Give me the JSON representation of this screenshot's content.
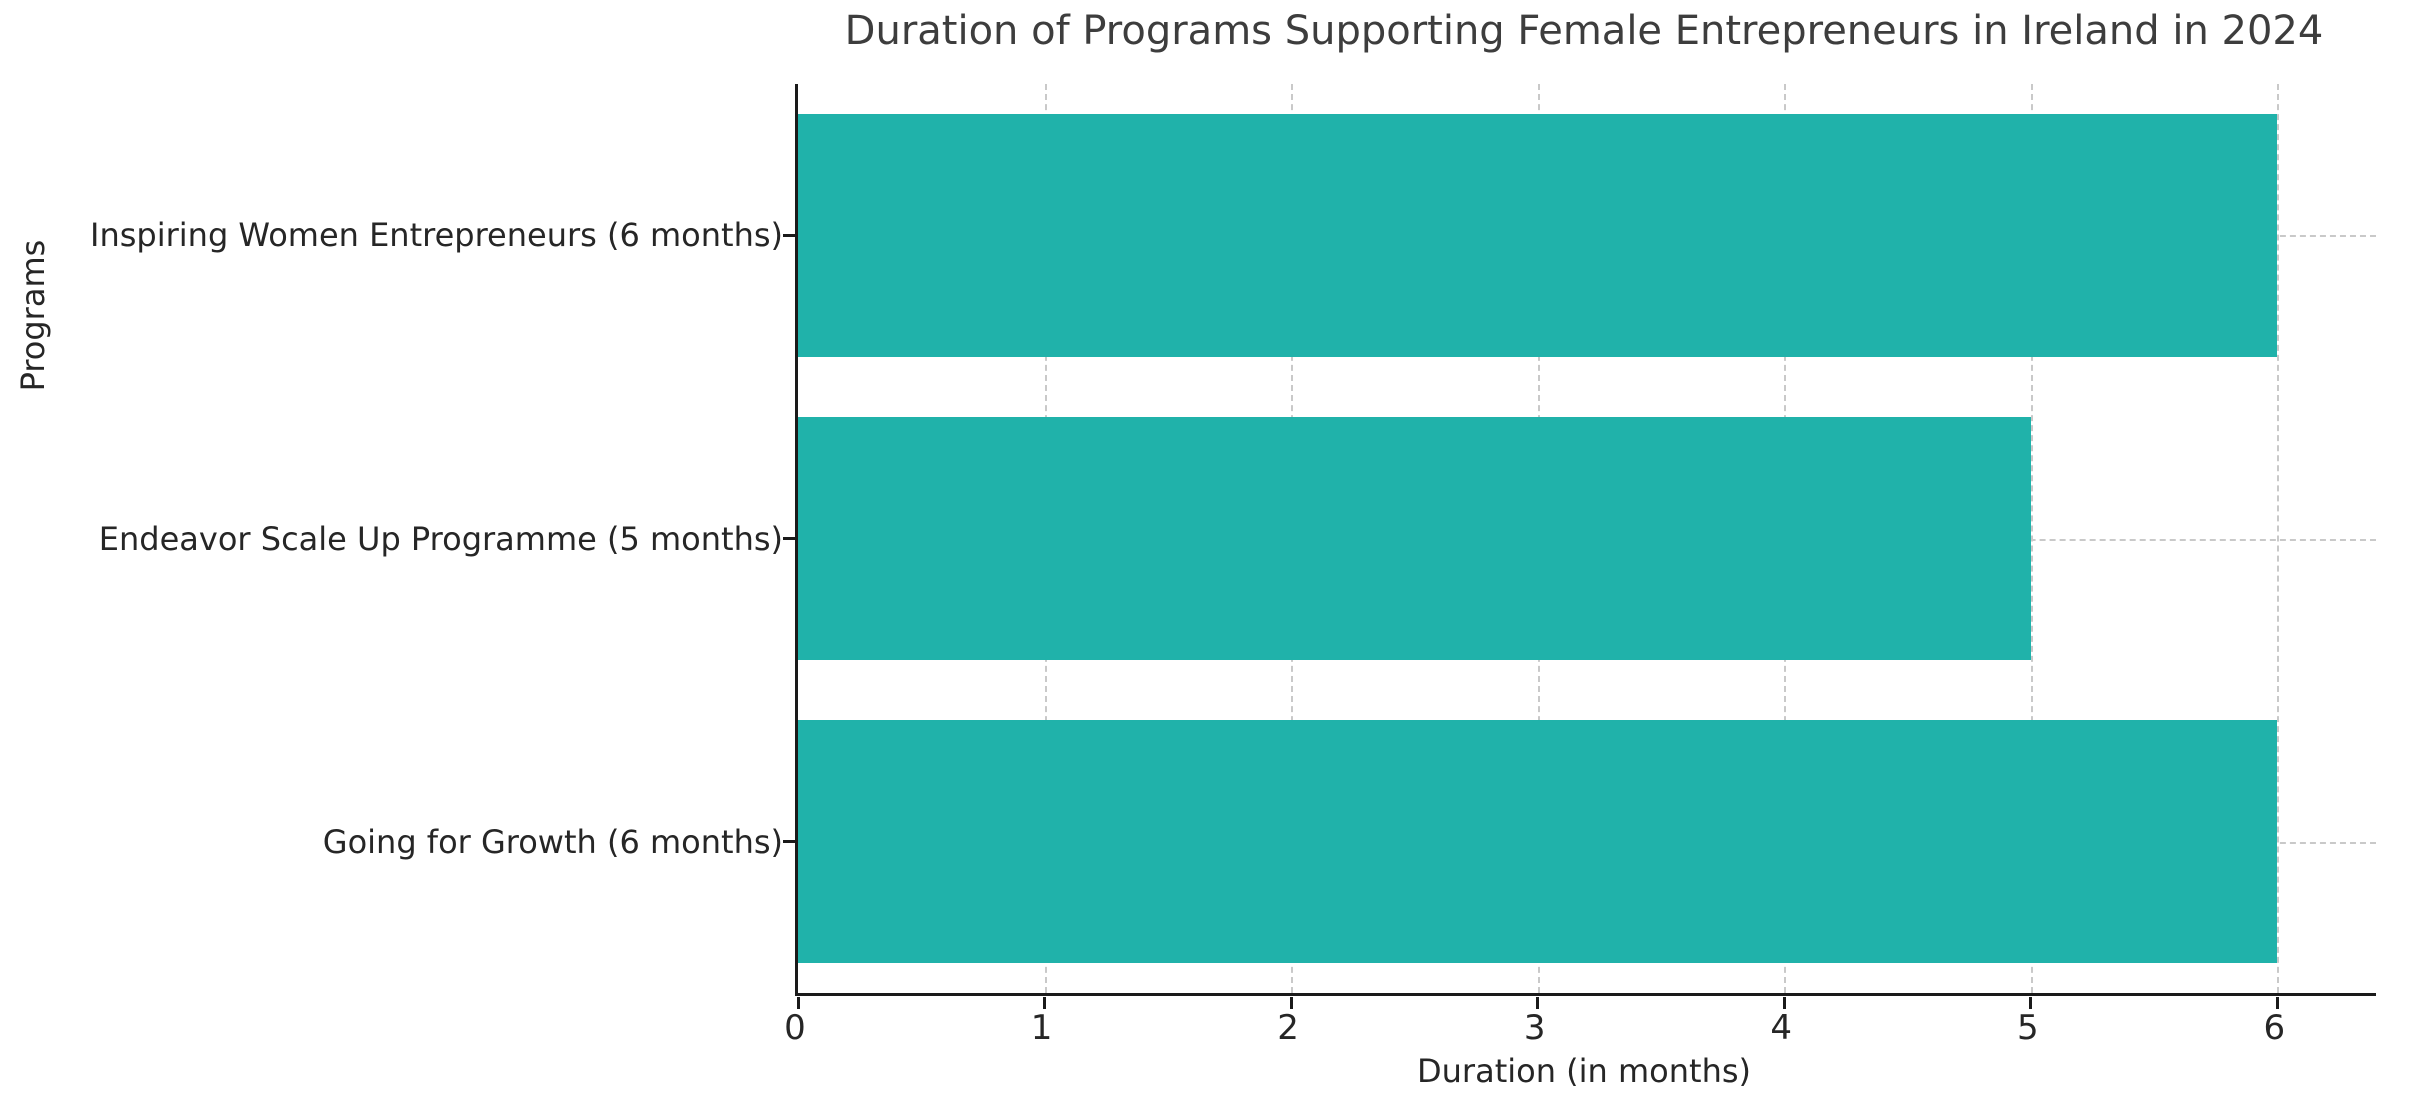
{
  "figure": {
    "title": "Duration of Programs Supporting Female Entrepreneurs in Ireland in 2024",
    "xlabel": "Duration (in months)",
    "ylabel": "Programs"
  },
  "chart_data": {
    "type": "bar",
    "orientation": "horizontal",
    "title": "Duration of Programs Supporting Female Entrepreneurs in Ireland in 2024",
    "xlabel": "Duration (in months)",
    "ylabel": "Programs",
    "categories": [
      "Inspiring Women Entrepreneurs (6 months)",
      "Endeavor Scale Up Programme (5 months)",
      "Going for Growth (6 months)"
    ],
    "values": [
      6,
      5,
      6
    ],
    "xlim": [
      0,
      6.4
    ],
    "xticks": [
      0,
      1,
      2,
      3,
      4,
      5,
      6
    ],
    "grid": true,
    "grid_style": "dashed",
    "bar_color": "#20b2aa",
    "bar_height_fraction": 0.8,
    "legend": "none"
  }
}
